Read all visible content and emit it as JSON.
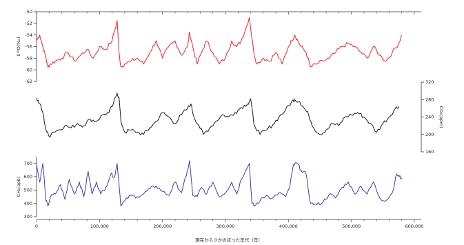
{
  "chart_data": {
    "type": "line",
    "x_axis": {
      "label": "現在からさかのぼった年代（年）",
      "range": [
        0,
        600000
      ],
      "ticks": [
        0,
        100000,
        200000,
        300000,
        400000,
        500000,
        600000
      ],
      "tick_labels": [
        "0",
        "100,000",
        "200,000",
        "300,000",
        "400,000",
        "500,000",
        "600,000"
      ]
    },
    "panels": [
      {
        "id": "d18o",
        "ylabel": "δ¹⁸O(‰)",
        "axis_side": "left",
        "ylim": [
          -62,
          -50
        ],
        "inverted": true,
        "ticks": [
          -50,
          -52,
          -54,
          -56,
          -58,
          -60,
          -62
        ],
        "tick_labels": [
          "-50",
          "-52",
          "-54",
          "-56",
          "-58",
          "-60",
          "-62"
        ],
        "color": "#e8242a",
        "series": {
          "x": [
            0,
            5000,
            10000,
            15000,
            18000,
            22000,
            30000,
            40000,
            50000,
            60000,
            70000,
            80000,
            90000,
            100000,
            110000,
            120000,
            128000,
            131000,
            134000,
            140000,
            150000,
            160000,
            170000,
            180000,
            190000,
            200000,
            210000,
            220000,
            230000,
            240000,
            243000,
            248000,
            255000,
            262000,
            270000,
            280000,
            290000,
            300000,
            310000,
            318000,
            325000,
            332000,
            338000,
            345000,
            350000,
            360000,
            370000,
            380000,
            390000,
            400000,
            405000,
            410000,
            415000,
            420000,
            428000,
            435000,
            445000,
            455000,
            465000,
            475000,
            485000,
            495000,
            505000,
            515000,
            525000,
            535000,
            545000,
            555000,
            565000,
            575000,
            580000
          ],
          "y": [
            -55,
            -54,
            -56,
            -58,
            -59.5,
            -59,
            -58.5,
            -58,
            -57,
            -58.5,
            -57.5,
            -56.5,
            -58,
            -56,
            -56.5,
            -55,
            -51.5,
            -57,
            -59.5,
            -59,
            -58.5,
            -58,
            -59,
            -57,
            -55,
            -58,
            -56,
            -55,
            -57.5,
            -56,
            -53.5,
            -56,
            -59,
            -57,
            -55,
            -57,
            -59,
            -58,
            -55,
            -56,
            -55,
            -53,
            -51,
            -57,
            -59,
            -58,
            -58.5,
            -57,
            -59,
            -56,
            -55,
            -54,
            -55,
            -56,
            -57,
            -59.5,
            -59,
            -58.5,
            -58,
            -57,
            -56,
            -55.5,
            -56,
            -57,
            -58,
            -56,
            -57.5,
            -58.5,
            -57,
            -55.5,
            -54
          ]
        }
      },
      {
        "id": "co2",
        "ylabel": "CO₂(ppm)",
        "axis_side": "right",
        "ylim": [
          160,
          320
        ],
        "ticks": [
          160,
          200,
          240,
          280,
          320
        ],
        "tick_labels": [
          "160",
          "200",
          "240",
          "280",
          "320"
        ],
        "color": "#1a1a1a",
        "series": {
          "x": [
            0,
            5000,
            10000,
            15000,
            20000,
            25000,
            35000,
            45000,
            55000,
            65000,
            75000,
            85000,
            95000,
            105000,
            115000,
            122000,
            128000,
            131000,
            134000,
            140000,
            150000,
            160000,
            170000,
            180000,
            190000,
            200000,
            210000,
            220000,
            230000,
            240000,
            245000,
            250000,
            258000,
            265000,
            275000,
            285000,
            295000,
            305000,
            315000,
            325000,
            335000,
            340000,
            345000,
            355000,
            365000,
            375000,
            385000,
            395000,
            405000,
            410000,
            418000,
            425000,
            432000,
            440000,
            450000,
            460000,
            470000,
            480000,
            490000,
            500000,
            510000,
            520000,
            530000,
            540000,
            550000,
            560000,
            570000,
            575000
          ],
          "y": [
            283,
            270,
            250,
            210,
            195,
            205,
            210,
            220,
            215,
            225,
            220,
            235,
            230,
            245,
            250,
            270,
            295,
            285,
            230,
            205,
            210,
            205,
            200,
            215,
            230,
            250,
            240,
            225,
            245,
            260,
            270,
            240,
            220,
            200,
            215,
            230,
            245,
            240,
            250,
            262,
            270,
            282,
            225,
            200,
            210,
            222,
            240,
            255,
            275,
            280,
            275,
            260,
            245,
            215,
            200,
            210,
            225,
            220,
            240,
            245,
            250,
            240,
            225,
            205,
            225,
            240,
            260,
            265
          ]
        }
      },
      {
        "id": "ch4",
        "ylabel": "CH₄(ppb)",
        "axis_side": "left",
        "ylim": [
          300,
          750
        ],
        "ticks": [
          300,
          400,
          500,
          600,
          700
        ],
        "tick_labels": [
          "300",
          "400",
          "500",
          "600",
          "700"
        ],
        "color": "#3a3fa8",
        "series": {
          "x": [
            0,
            5000,
            10000,
            15000,
            18000,
            22000,
            30000,
            38000,
            45000,
            52000,
            60000,
            68000,
            75000,
            82000,
            88000,
            95000,
            102000,
            110000,
            118000,
            124000,
            128000,
            131000,
            134000,
            140000,
            150000,
            160000,
            170000,
            180000,
            190000,
            200000,
            210000,
            220000,
            230000,
            238000,
            243000,
            248000,
            255000,
            262000,
            270000,
            280000,
            290000,
            300000,
            310000,
            318000,
            325000,
            332000,
            338000,
            342000,
            346000,
            355000,
            365000,
            375000,
            385000,
            395000,
            402000,
            408000,
            414000,
            420000,
            428000,
            435000,
            445000,
            455000,
            465000,
            475000,
            485000,
            495000,
            505000,
            515000,
            525000,
            535000,
            545000,
            555000,
            565000,
            572000,
            576000,
            580000
          ],
          "y": [
            690,
            560,
            700,
            420,
            380,
            450,
            470,
            540,
            430,
            580,
            470,
            560,
            450,
            640,
            470,
            560,
            470,
            520,
            620,
            600,
            700,
            550,
            380,
            420,
            460,
            450,
            470,
            510,
            530,
            490,
            460,
            560,
            480,
            610,
            720,
            460,
            450,
            520,
            470,
            560,
            450,
            480,
            560,
            470,
            580,
            650,
            700,
            400,
            380,
            420,
            460,
            440,
            480,
            450,
            520,
            690,
            700,
            650,
            620,
            400,
            390,
            410,
            470,
            440,
            520,
            560,
            470,
            530,
            470,
            560,
            440,
            420,
            480,
            620,
            600,
            590
          ]
        }
      }
    ]
  }
}
